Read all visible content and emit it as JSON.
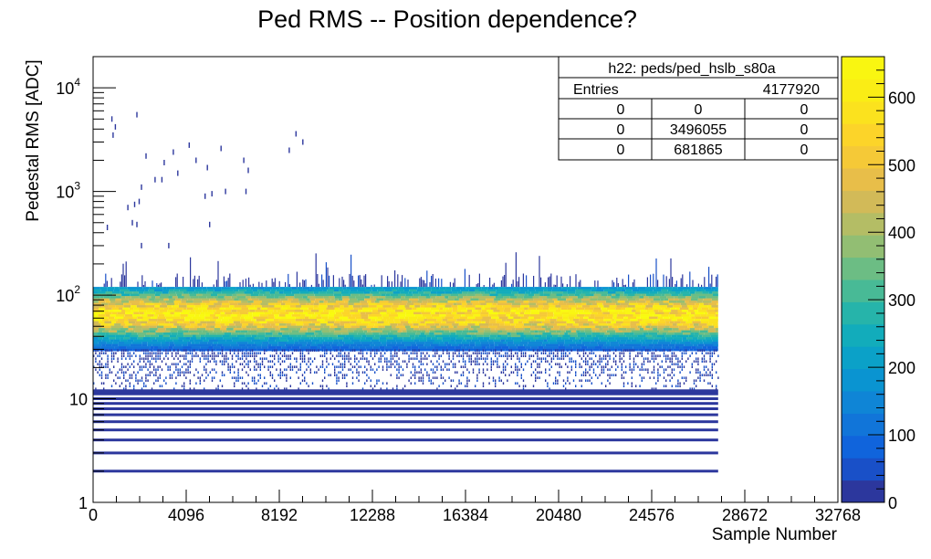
{
  "chart_data": {
    "type": "heatmap",
    "title": "Ped RMS -- Position dependence?",
    "xlabel": "Sample Number",
    "ylabel": "Pedestal RMS [ADC]",
    "x_scale": "linear",
    "y_scale": "log",
    "xlim": [
      0,
      32768
    ],
    "ylim": [
      1,
      20000
    ],
    "x_ticks": [
      "0",
      "4096",
      "8192",
      "12288",
      "16384",
      "20480",
      "24576",
      "28672",
      "32768"
    ],
    "y_ticks": [
      {
        "label": "1",
        "exp": "",
        "value": 1
      },
      {
        "label": "10",
        "exp": "",
        "value": 10
      },
      {
        "label": "10",
        "exp": "2",
        "value": 100
      },
      {
        "label": "10",
        "exp": "3",
        "value": 1000
      },
      {
        "label": "10",
        "exp": "4",
        "value": 10000
      }
    ],
    "data_x_max": 27500,
    "band": {
      "peak": 65,
      "dense_range": [
        30,
        120
      ],
      "sparse_range": [
        12,
        30
      ],
      "outlier_range": [
        120,
        250
      ]
    },
    "discrete_levels": [
      2,
      3,
      4,
      5,
      6,
      7,
      8,
      9,
      10,
      11,
      12
    ],
    "outliers": [
      {
        "x": 800,
        "y": 5000
      },
      {
        "x": 850,
        "y": 3500
      },
      {
        "x": 950,
        "y": 4200
      },
      {
        "x": 1900,
        "y": 5500
      },
      {
        "x": 2300,
        "y": 2200
      },
      {
        "x": 3100,
        "y": 1900
      },
      {
        "x": 3500,
        "y": 2400
      },
      {
        "x": 4200,
        "y": 2800
      },
      {
        "x": 4500,
        "y": 2000
      },
      {
        "x": 5000,
        "y": 1700
      },
      {
        "x": 5600,
        "y": 2600
      },
      {
        "x": 6600,
        "y": 2000
      },
      {
        "x": 6800,
        "y": 1600
      },
      {
        "x": 8600,
        "y": 2500
      },
      {
        "x": 8900,
        "y": 3600
      },
      {
        "x": 9200,
        "y": 3000
      },
      {
        "x": 3000,
        "y": 1300
      },
      {
        "x": 4900,
        "y": 900
      },
      {
        "x": 5200,
        "y": 950
      },
      {
        "x": 6700,
        "y": 1000
      },
      {
        "x": 2100,
        "y": 1100
      },
      {
        "x": 2700,
        "y": 1300
      },
      {
        "x": 5800,
        "y": 1000
      },
      {
        "x": 1500,
        "y": 700
      },
      {
        "x": 1800,
        "y": 750
      },
      {
        "x": 2000,
        "y": 800
      },
      {
        "x": 3700,
        "y": 1500
      },
      {
        "x": 1700,
        "y": 500
      },
      {
        "x": 1900,
        "y": 480
      },
      {
        "x": 600,
        "y": 450
      },
      {
        "x": 5100,
        "y": 480
      },
      {
        "x": 2100,
        "y": 300
      },
      {
        "x": 3300,
        "y": 300
      }
    ],
    "color_scale": {
      "min": 0,
      "max": 660,
      "ticks": [
        "0",
        "100",
        "200",
        "300",
        "400",
        "500",
        "600"
      ],
      "tick_values": [
        0,
        100,
        200,
        300,
        400,
        500,
        600
      ],
      "palette": "parula"
    },
    "stats_box": {
      "title": "h22: peds/ped_hslb_s80a",
      "entries_label": "Entries",
      "entries_value": "4177920",
      "rows": [
        [
          "0",
          "0",
          "0"
        ],
        [
          "0",
          "3496055",
          "0"
        ],
        [
          "0",
          "681865",
          "0"
        ]
      ]
    }
  }
}
